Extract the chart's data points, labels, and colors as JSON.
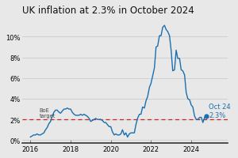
{
  "title": "UK inflation at 2.3% in October 2024",
  "title_fontsize": 8.5,
  "line_color": "#1a6faf",
  "dashed_line_color": "#cc2222",
  "dashed_line_value": 2.0,
  "boe_label": "BoE\ntarget",
  "annotation_text": "Oct 24\n2.3%",
  "background_color": "#e8e8e8",
  "plot_bg_color": "#e8e8e8",
  "ylim": [
    -0.3,
    11.8
  ],
  "yticks": [
    0,
    2,
    4,
    6,
    8,
    10
  ],
  "ytick_labels": [
    "0%",
    "2%",
    "4%",
    "6%",
    "8%",
    "10%"
  ],
  "xlim_start": 2015.6,
  "xlim_end": 2025.8,
  "xtick_years": [
    2016,
    2018,
    2020,
    2022,
    2024
  ],
  "data": [
    [
      2016.0,
      0.3
    ],
    [
      2016.08,
      0.4
    ],
    [
      2016.17,
      0.5
    ],
    [
      2016.25,
      0.5
    ],
    [
      2016.33,
      0.6
    ],
    [
      2016.42,
      0.5
    ],
    [
      2016.5,
      0.5
    ],
    [
      2016.58,
      0.6
    ],
    [
      2016.67,
      0.7
    ],
    [
      2016.75,
      1.0
    ],
    [
      2016.83,
      1.2
    ],
    [
      2016.92,
      1.6
    ],
    [
      2017.0,
      1.8
    ],
    [
      2017.08,
      2.3
    ],
    [
      2017.17,
      2.7
    ],
    [
      2017.25,
      2.9
    ],
    [
      2017.33,
      2.9
    ],
    [
      2017.42,
      2.7
    ],
    [
      2017.5,
      2.6
    ],
    [
      2017.58,
      2.8
    ],
    [
      2017.67,
      3.0
    ],
    [
      2017.75,
      3.0
    ],
    [
      2017.83,
      3.1
    ],
    [
      2017.92,
      3.0
    ],
    [
      2018.0,
      3.0
    ],
    [
      2018.08,
      2.7
    ],
    [
      2018.17,
      2.5
    ],
    [
      2018.25,
      2.4
    ],
    [
      2018.33,
      2.4
    ],
    [
      2018.42,
      2.4
    ],
    [
      2018.5,
      2.5
    ],
    [
      2018.58,
      2.4
    ],
    [
      2018.67,
      2.5
    ],
    [
      2018.75,
      2.4
    ],
    [
      2018.83,
      2.3
    ],
    [
      2018.92,
      2.1
    ],
    [
      2019.0,
      1.8
    ],
    [
      2019.08,
      1.9
    ],
    [
      2019.17,
      2.0
    ],
    [
      2019.25,
      2.1
    ],
    [
      2019.33,
      2.0
    ],
    [
      2019.42,
      2.0
    ],
    [
      2019.5,
      2.0
    ],
    [
      2019.58,
      1.9
    ],
    [
      2019.67,
      1.7
    ],
    [
      2019.75,
      1.7
    ],
    [
      2019.83,
      1.5
    ],
    [
      2019.92,
      1.3
    ],
    [
      2020.0,
      1.3
    ],
    [
      2020.08,
      0.8
    ],
    [
      2020.17,
      0.5
    ],
    [
      2020.25,
      0.6
    ],
    [
      2020.33,
      0.5
    ],
    [
      2020.42,
      0.5
    ],
    [
      2020.5,
      0.6
    ],
    [
      2020.58,
      1.0
    ],
    [
      2020.67,
      0.5
    ],
    [
      2020.75,
      0.7
    ],
    [
      2020.83,
      0.3
    ],
    [
      2020.92,
      0.6
    ],
    [
      2021.0,
      0.7
    ],
    [
      2021.08,
      0.7
    ],
    [
      2021.17,
      0.7
    ],
    [
      2021.25,
      1.5
    ],
    [
      2021.33,
      2.1
    ],
    [
      2021.42,
      2.5
    ],
    [
      2021.5,
      2.5
    ],
    [
      2021.58,
      3.2
    ],
    [
      2021.67,
      3.1
    ],
    [
      2021.75,
      3.8
    ],
    [
      2021.83,
      4.2
    ],
    [
      2021.92,
      5.1
    ],
    [
      2022.0,
      5.5
    ],
    [
      2022.08,
      6.2
    ],
    [
      2022.17,
      7.0
    ],
    [
      2022.25,
      9.0
    ],
    [
      2022.33,
      9.1
    ],
    [
      2022.42,
      10.1
    ],
    [
      2022.5,
      10.1
    ],
    [
      2022.58,
      10.9
    ],
    [
      2022.67,
      11.1
    ],
    [
      2022.75,
      10.7
    ],
    [
      2022.83,
      10.5
    ],
    [
      2022.92,
      10.1
    ],
    [
      2023.0,
      8.7
    ],
    [
      2023.08,
      6.7
    ],
    [
      2023.17,
      6.8
    ],
    [
      2023.25,
      8.7
    ],
    [
      2023.33,
      7.9
    ],
    [
      2023.42,
      7.9
    ],
    [
      2023.5,
      6.8
    ],
    [
      2023.58,
      6.7
    ],
    [
      2023.67,
      6.3
    ],
    [
      2023.75,
      4.6
    ],
    [
      2023.83,
      4.0
    ],
    [
      2023.92,
      3.9
    ],
    [
      2024.0,
      3.4
    ],
    [
      2024.08,
      3.2
    ],
    [
      2024.17,
      2.3
    ],
    [
      2024.25,
      2.0
    ],
    [
      2024.33,
      2.0
    ],
    [
      2024.42,
      2.2
    ],
    [
      2024.5,
      2.2
    ],
    [
      2024.58,
      1.7
    ],
    [
      2024.67,
      2.2
    ],
    [
      2024.75,
      2.3
    ]
  ]
}
